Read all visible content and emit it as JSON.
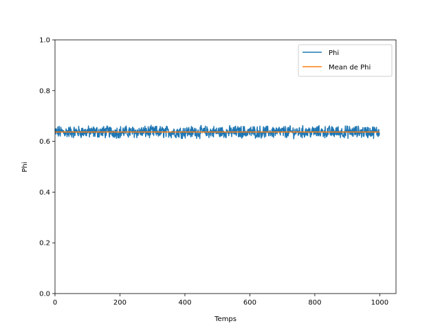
{
  "chart_data": {
    "type": "line",
    "title": "",
    "xlabel": "Temps",
    "ylabel": "Phi",
    "xlim": [
      0,
      1050
    ],
    "ylim": [
      0.0,
      1.0
    ],
    "xticks": [
      0,
      200,
      400,
      600,
      800,
      1000
    ],
    "xtick_labels": [
      "0",
      "200",
      "400",
      "600",
      "800",
      "1000"
    ],
    "yticks": [
      0.0,
      0.2,
      0.4,
      0.6,
      0.8,
      1.0
    ],
    "ytick_labels": [
      "0.0",
      "0.2",
      "0.4",
      "0.6",
      "0.8",
      "1.0"
    ],
    "grid": false,
    "legend_position": "upper right",
    "series": [
      {
        "name": "Phi",
        "color": "#1f77b4",
        "x_start": 0,
        "x_end": 999,
        "mean": 0.637,
        "min": 0.61,
        "max": 0.665,
        "note_values": "noisy series fluctuating between about 0.61 and 0.665"
      },
      {
        "name": "Mean de Phi",
        "color": "#ff7f0e",
        "x": [
          0,
          999
        ],
        "values": [
          0.637,
          0.637
        ]
      }
    ]
  }
}
